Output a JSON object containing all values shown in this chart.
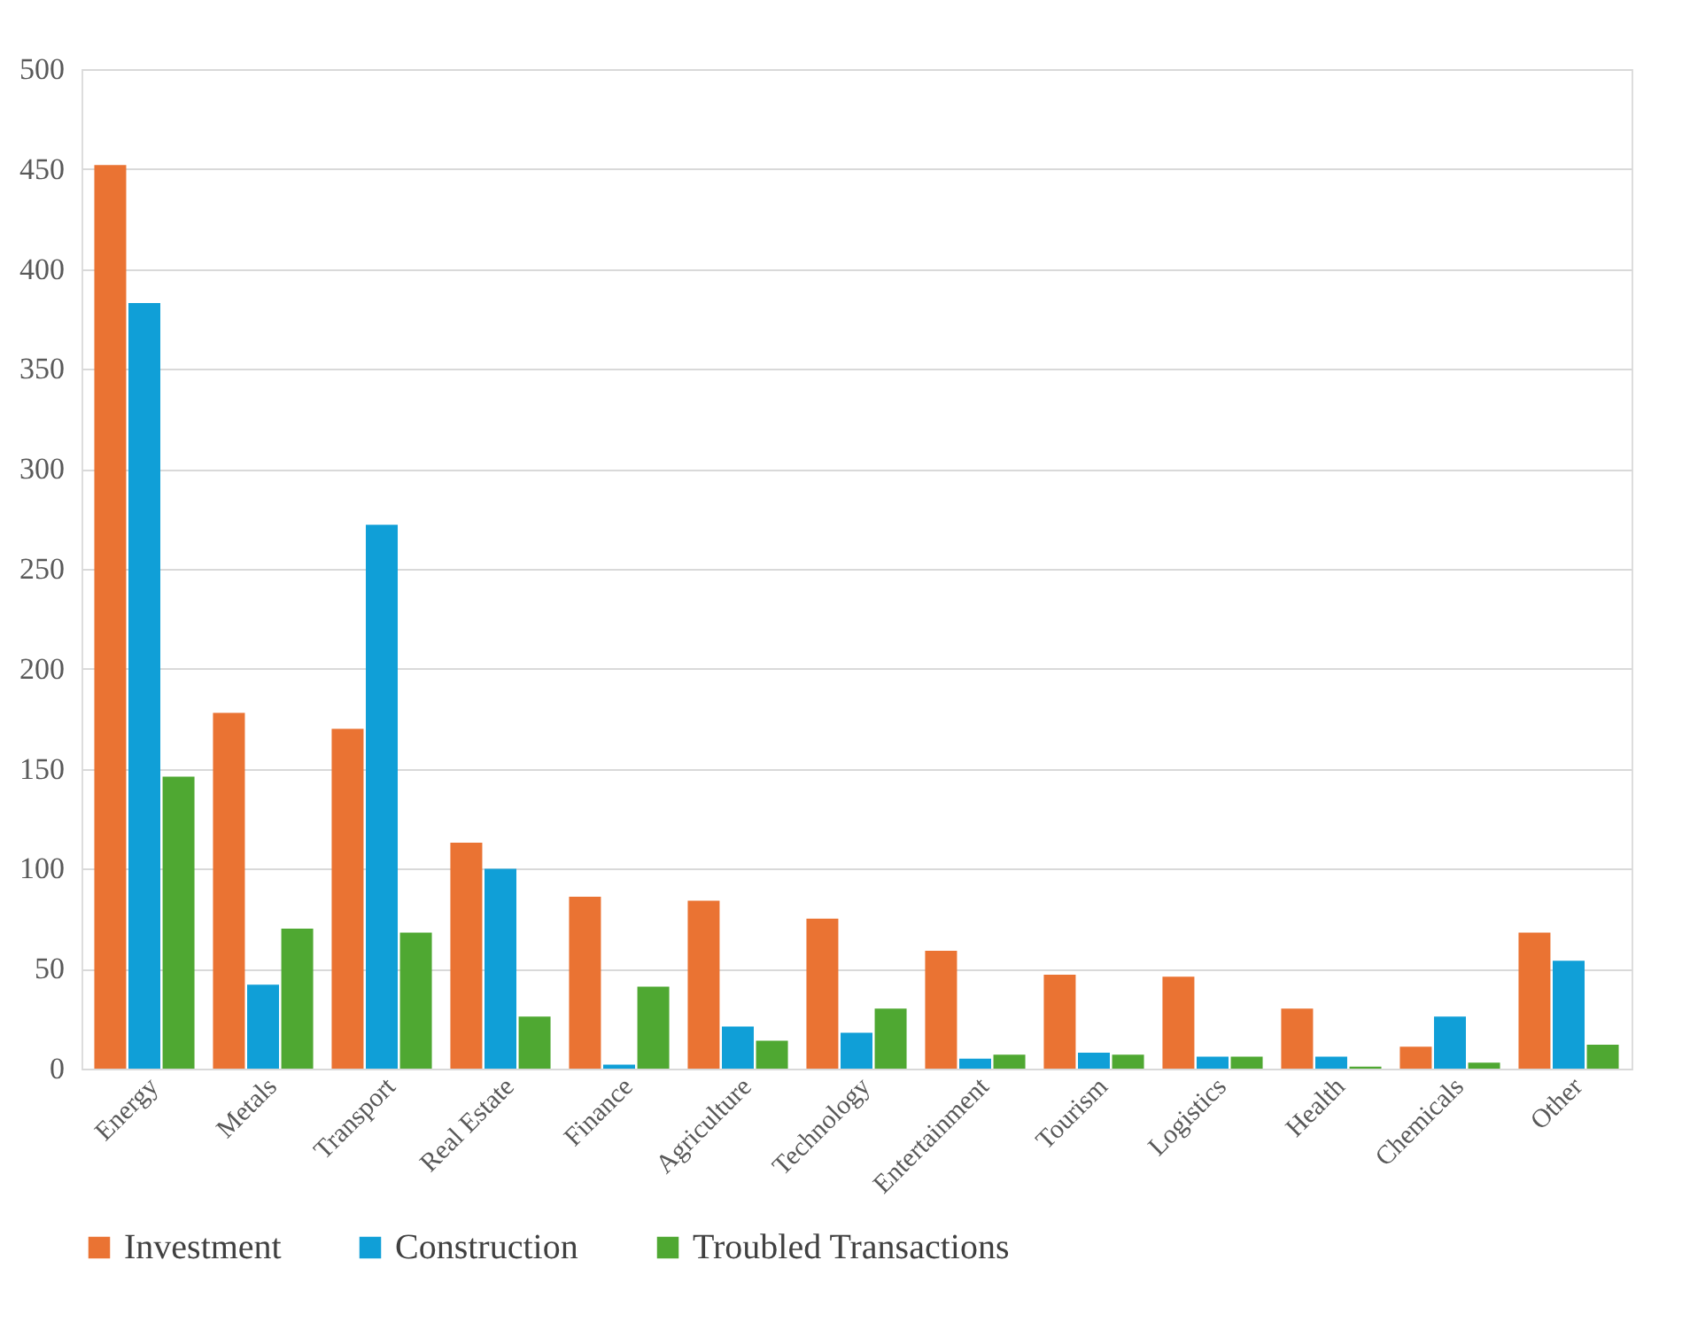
{
  "chart_data": {
    "type": "bar",
    "categories": [
      "Energy",
      "Metals",
      "Transport",
      "Real Estate",
      "Finance",
      "Agriculture",
      "Technology",
      "Entertainment",
      "Tourism",
      "Logistics",
      "Health",
      "Chemicals",
      "Other"
    ],
    "series": [
      {
        "name": "Investment",
        "color": "#ea7333",
        "values": [
          452,
          178,
          170,
          113,
          86,
          84,
          75,
          59,
          47,
          46,
          30,
          11,
          68
        ]
      },
      {
        "name": "Construction",
        "color": "#109fd7",
        "values": [
          383,
          42,
          272,
          100,
          2,
          21,
          18,
          5,
          8,
          6,
          6,
          26,
          54
        ]
      },
      {
        "name": "Troubled Transactions",
        "color": "#4fa832",
        "values": [
          146,
          70,
          68,
          26,
          41,
          14,
          30,
          7,
          7,
          6,
          1,
          3,
          12
        ]
      }
    ],
    "ylim": [
      0,
      500
    ],
    "yticks": [
      0,
      50,
      100,
      150,
      200,
      250,
      300,
      350,
      400,
      450,
      500
    ],
    "grid": "y",
    "legend": "bottom"
  }
}
